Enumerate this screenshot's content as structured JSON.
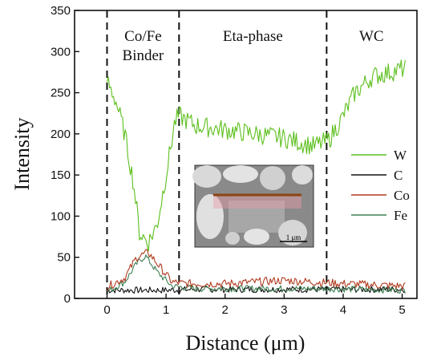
{
  "chart_data": {
    "type": "line",
    "xlabel": "Distance (μm)",
    "ylabel": "Intensity",
    "xlim": [
      -0.55,
      5.25
    ],
    "ylim": [
      0,
      350
    ],
    "x_ticks": [
      0,
      1,
      2,
      3,
      4,
      5
    ],
    "y_ticks": [
      0,
      50,
      100,
      150,
      200,
      250,
      300,
      350
    ],
    "grid": false,
    "legend_position": "right",
    "region_boundaries": [
      0,
      1.22,
      3.72
    ],
    "region_labels": [
      {
        "label": "Co/Fe\nBinder",
        "x_center": 0.61
      },
      {
        "label": "Eta-phase",
        "x_center": 2.47
      },
      {
        "label": "WC",
        "x_center": 4.48
      }
    ],
    "series": [
      {
        "name": "W",
        "color": "#5cbf1c",
        "keypoints": [
          [
            0,
            265
          ],
          [
            0.15,
            240
          ],
          [
            0.3,
            200
          ],
          [
            0.45,
            140
          ],
          [
            0.55,
            80
          ],
          [
            0.7,
            68
          ],
          [
            0.85,
            90
          ],
          [
            1.0,
            150
          ],
          [
            1.15,
            215
          ],
          [
            1.22,
            222
          ],
          [
            1.5,
            210
          ],
          [
            2.0,
            205
          ],
          [
            2.5,
            200
          ],
          [
            3.0,
            195
          ],
          [
            3.5,
            185
          ],
          [
            3.75,
            192
          ],
          [
            3.95,
            215
          ],
          [
            4.2,
            250
          ],
          [
            4.5,
            270
          ],
          [
            4.8,
            275
          ],
          [
            5.05,
            280
          ]
        ],
        "noise": 12
      },
      {
        "name": "C",
        "color": "#111111",
        "keypoints": [
          [
            0,
            10
          ],
          [
            0.5,
            10
          ],
          [
            1.0,
            10
          ],
          [
            1.5,
            11
          ],
          [
            2.0,
            11
          ],
          [
            3.0,
            11
          ],
          [
            4.0,
            11
          ],
          [
            5.05,
            11
          ]
        ],
        "noise": 4
      },
      {
        "name": "Co",
        "color": "#b03a1e",
        "keypoints": [
          [
            0,
            14
          ],
          [
            0.3,
            25
          ],
          [
            0.5,
            50
          ],
          [
            0.7,
            56
          ],
          [
            0.9,
            38
          ],
          [
            1.1,
            20
          ],
          [
            1.3,
            18
          ],
          [
            2.0,
            18
          ],
          [
            3.0,
            22
          ],
          [
            4.0,
            18
          ],
          [
            5.05,
            15
          ]
        ],
        "noise": 5
      },
      {
        "name": "Fe",
        "color": "#3f7f52",
        "keypoints": [
          [
            0,
            8
          ],
          [
            0.3,
            20
          ],
          [
            0.5,
            42
          ],
          [
            0.65,
            52
          ],
          [
            0.85,
            32
          ],
          [
            1.1,
            15
          ],
          [
            1.5,
            12
          ],
          [
            2.5,
            12
          ],
          [
            3.5,
            12
          ],
          [
            5.05,
            10
          ]
        ],
        "noise": 4
      }
    ]
  },
  "inset": {
    "scale_bar_label": "1 μm"
  }
}
